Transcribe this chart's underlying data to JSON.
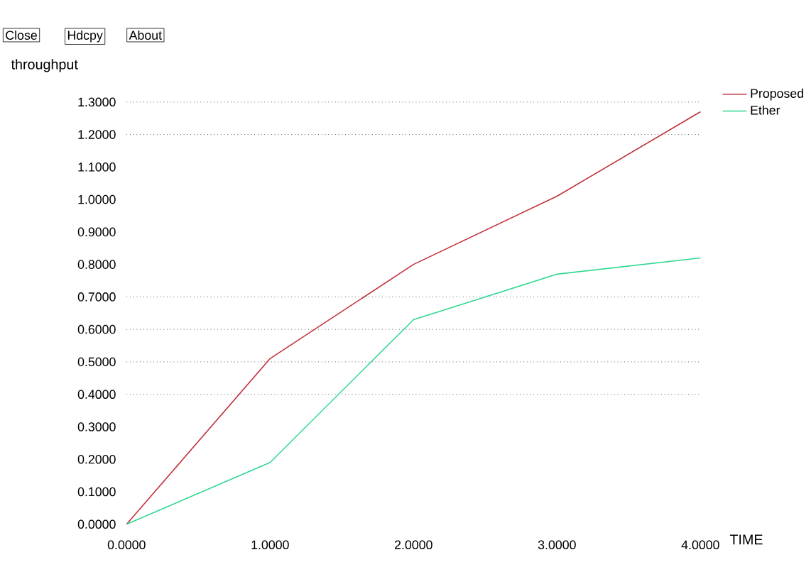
{
  "chart_data": {
    "type": "line",
    "xlabel": "TIME",
    "ylabel": "throughput",
    "annotations": [
      "Close",
      "Hdcpy",
      "About"
    ],
    "x": [
      0,
      1,
      2,
      3,
      4
    ],
    "series": [
      {
        "name": "Proposed",
        "color": "#c0303a",
        "values": [
          0,
          0.51,
          0.8,
          1.01,
          1.27
        ]
      },
      {
        "name": "Ether",
        "color": "#30d890",
        "values": [
          0,
          0.19,
          0.63,
          0.77,
          0.82
        ]
      }
    ],
    "xlim": [
      0,
      4
    ],
    "xticks": [
      {
        "value": 0,
        "label": "0.0000"
      },
      {
        "value": 1,
        "label": "1.0000"
      },
      {
        "value": 2,
        "label": "2.0000"
      },
      {
        "value": 3,
        "label": "3.0000"
      },
      {
        "value": 4,
        "label": "4.0000"
      }
    ],
    "ylim": [
      0,
      1.32
    ],
    "yticks": [
      {
        "value": 0,
        "label": "0.0000"
      },
      {
        "value": 0.1,
        "label": "0.1000"
      },
      {
        "value": 0.2,
        "label": "0.2000"
      },
      {
        "value": 0.3,
        "label": "0.3000"
      },
      {
        "value": 0.4,
        "label": "0.4000"
      },
      {
        "value": 0.5,
        "label": "0.5000"
      },
      {
        "value": 0.6,
        "label": "0.6000"
      },
      {
        "value": 0.7,
        "label": "0.7000"
      },
      {
        "value": 0.8,
        "label": "0.8000"
      },
      {
        "value": 0.9,
        "label": "0.9000"
      },
      {
        "value": 1.0,
        "label": "1.0000"
      },
      {
        "value": 1.1,
        "label": "1.1000"
      },
      {
        "value": 1.2,
        "label": "1.2000"
      },
      {
        "value": 1.3,
        "label": "1.3000"
      }
    ],
    "ref_lines": [
      {
        "axis": "y",
        "value": 0.4,
        "color": "#000000",
        "line_style": "dotted"
      },
      {
        "axis": "y",
        "value": 0.5,
        "color": "#000000",
        "line_style": "dotted"
      },
      {
        "axis": "y",
        "value": 0.6,
        "color": "#000000",
        "line_style": "dotted"
      },
      {
        "axis": "y",
        "value": 0.7,
        "color": "#000000",
        "line_style": "dotted"
      },
      {
        "axis": "y",
        "value": 1.2,
        "color": "#000000",
        "line_style": "dotted"
      },
      {
        "axis": "y",
        "value": 1.3,
        "color": "#000000",
        "line_style": "dotted"
      }
    ],
    "legend": "top right"
  }
}
